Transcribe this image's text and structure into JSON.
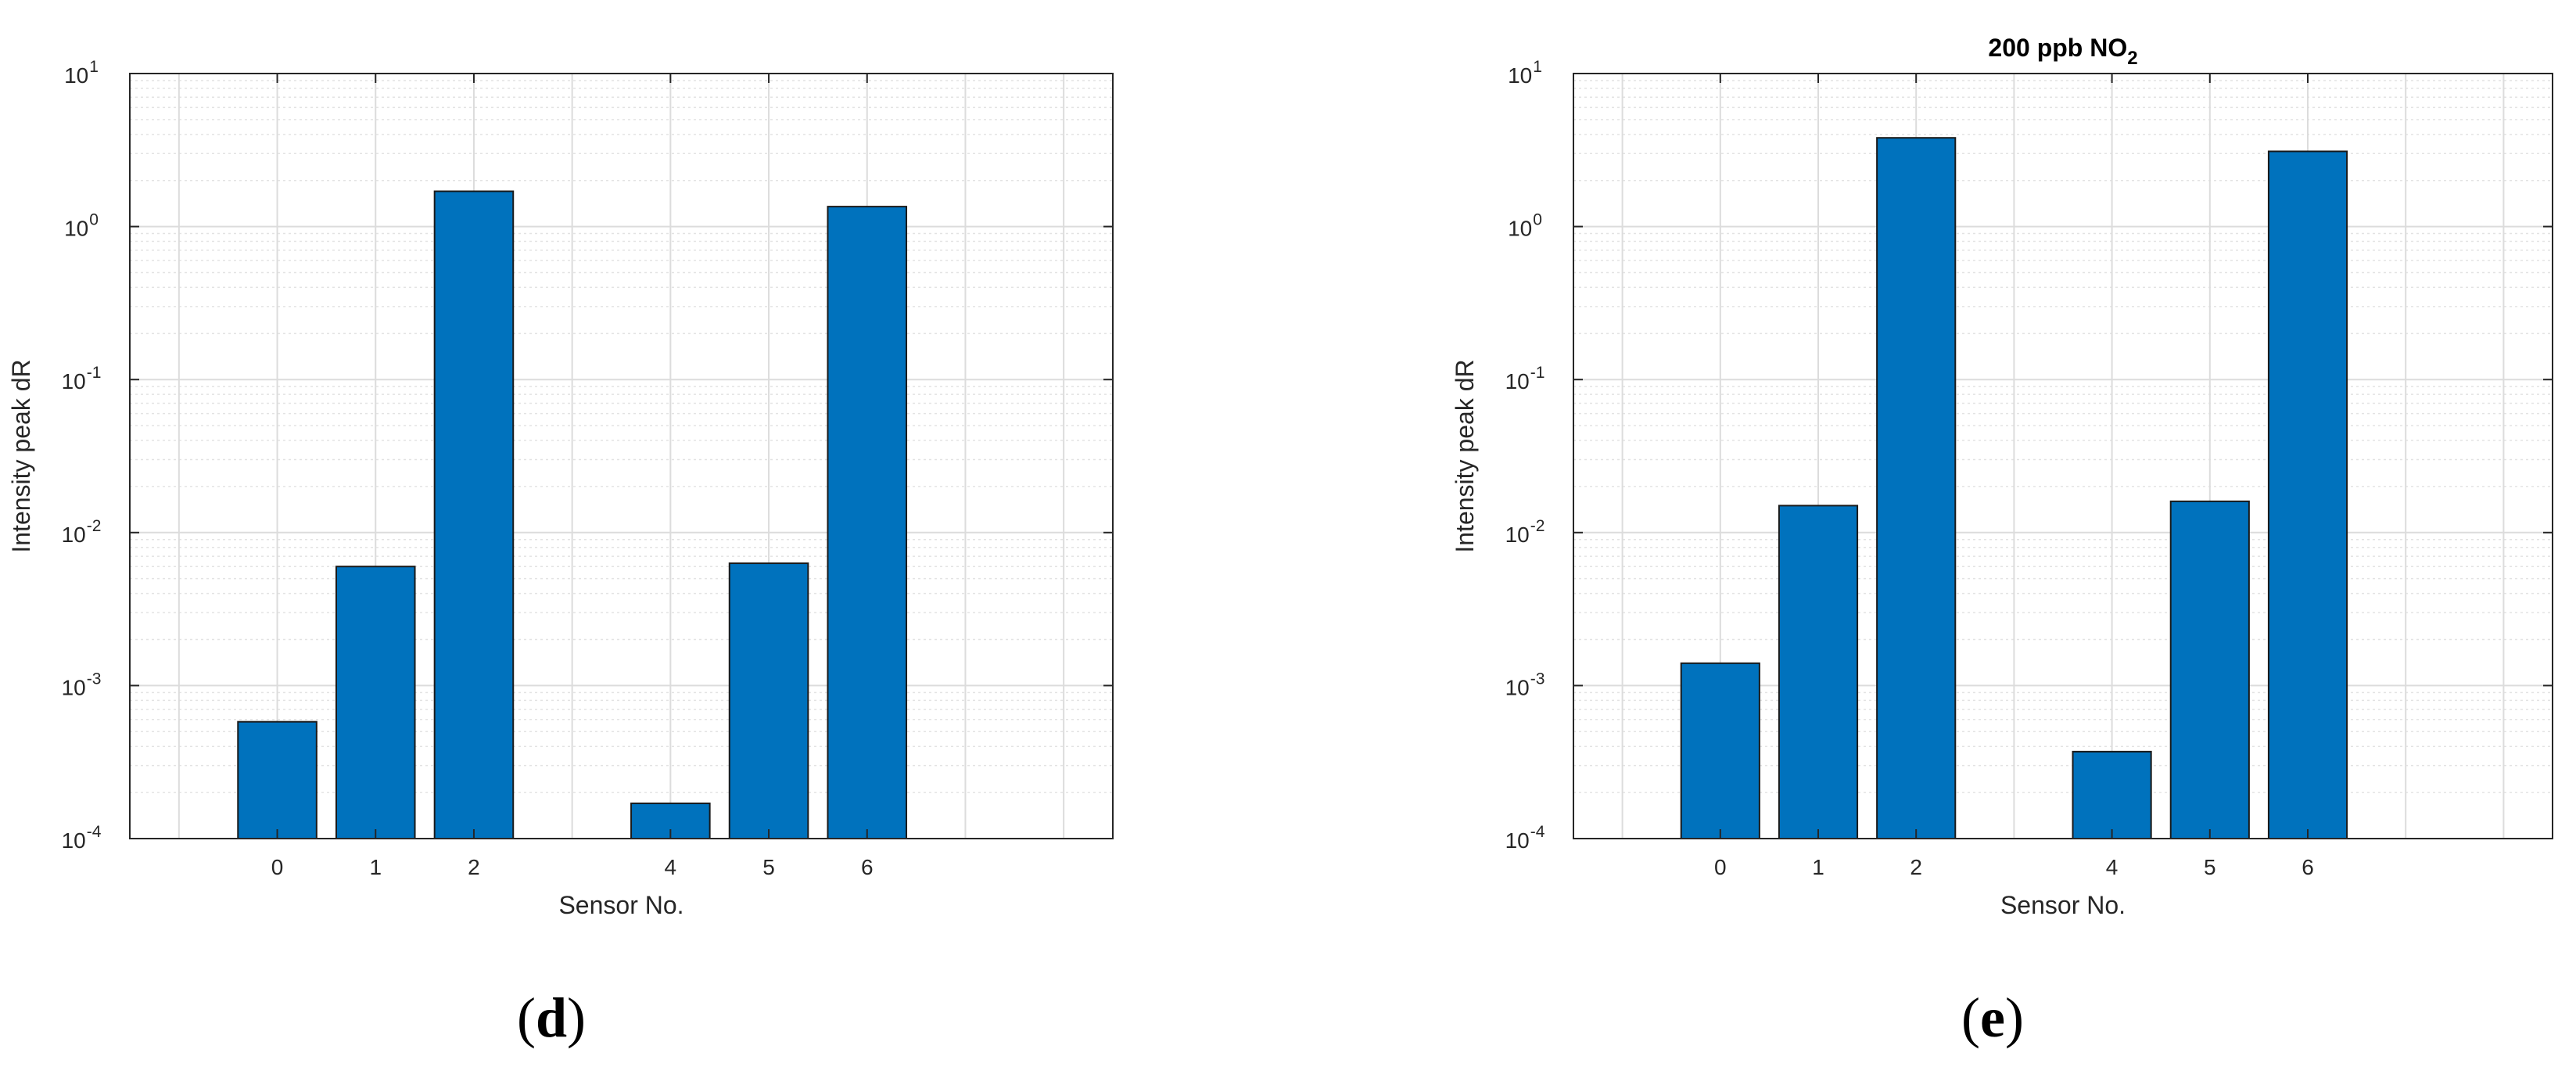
{
  "chart_data": [
    {
      "type": "bar",
      "panel_label": "d",
      "title": "",
      "xlabel": "Sensor No.",
      "ylabel": "Intensity peak dR",
      "yscale": "log",
      "ylim": [
        0.0001,
        10
      ],
      "xlim": [
        -1.5,
        8.5
      ],
      "grid": true,
      "categories": [
        "0",
        "1",
        "2",
        "4",
        "5",
        "6"
      ],
      "x": [
        0,
        1,
        2,
        4,
        5,
        6
      ],
      "values": [
        0.00058,
        0.006,
        1.7,
        0.00017,
        0.0063,
        1.35
      ],
      "bar_color": "#0072BD",
      "y_tick_labels": [
        "10-4",
        "10-3",
        "10-2",
        "10-1",
        "100",
        "101"
      ]
    },
    {
      "type": "bar",
      "panel_label": "e",
      "title": {
        "main": "200 ppb NO",
        "sub": "2"
      },
      "xlabel": "Sensor No.",
      "ylabel": "Intensity peak dR",
      "yscale": "log",
      "ylim": [
        0.0001,
        10
      ],
      "xlim": [
        -1.5,
        8.5
      ],
      "grid": true,
      "categories": [
        "0",
        "1",
        "2",
        "4",
        "5",
        "6"
      ],
      "x": [
        0,
        1,
        2,
        4,
        5,
        6
      ],
      "values": [
        0.0014,
        0.015,
        3.8,
        0.00037,
        0.016,
        3.1
      ],
      "bar_color": "#0072BD",
      "y_tick_labels": [
        "10-4",
        "10-3",
        "10-2",
        "10-1",
        "100",
        "101"
      ]
    }
  ]
}
